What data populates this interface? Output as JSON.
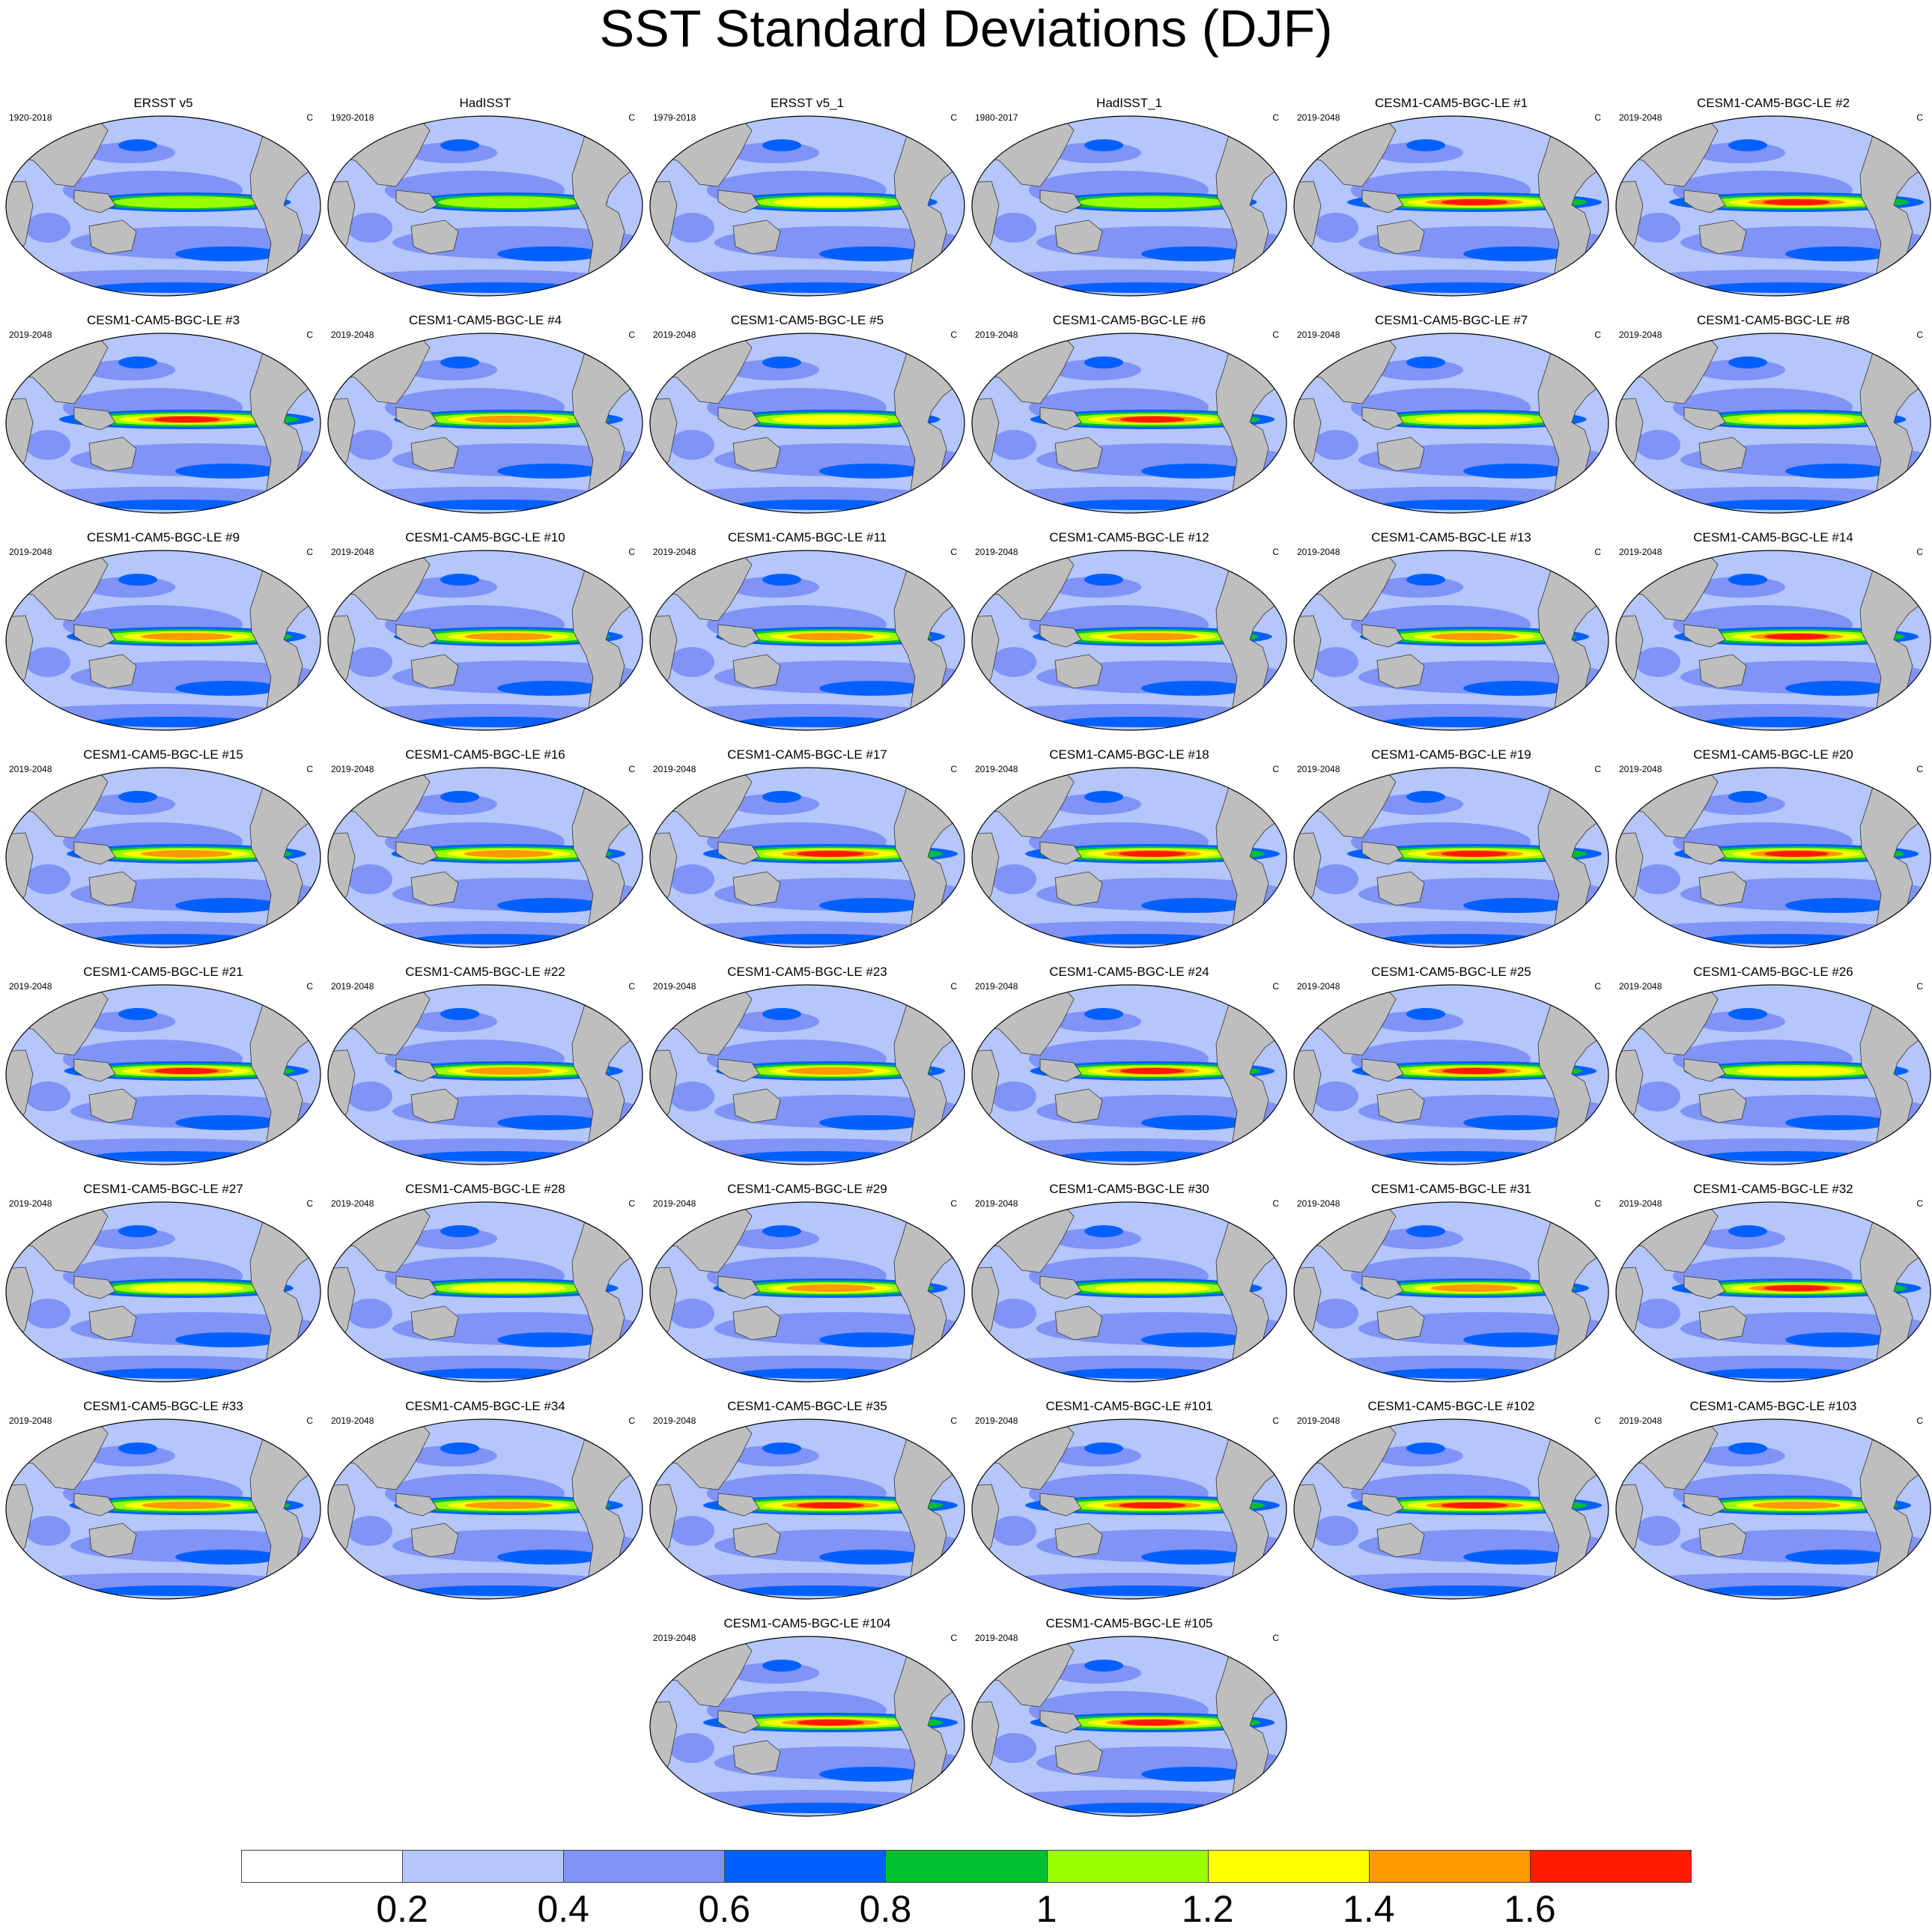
{
  "title": "SST Standard Deviations (DJF)",
  "unit": "C",
  "panels": [
    {
      "title": "ERSST v5",
      "period": "1920-2018",
      "intensity": 0.55
    },
    {
      "title": "HadISST",
      "period": "1920-2018",
      "intensity": 0.45
    },
    {
      "title": "ERSST v5_1",
      "period": "1979-2018",
      "intensity": 0.6
    },
    {
      "title": "HadISST_1",
      "period": "1980-2017",
      "intensity": 0.55
    },
    {
      "title": "CESM1-CAM5-BGC-LE #1",
      "period": "2019-2048",
      "intensity": 1.0
    },
    {
      "title": "CESM1-CAM5-BGC-LE #2",
      "period": "2019-2048",
      "intensity": 1.0
    },
    {
      "title": "CESM1-CAM5-BGC-LE #3",
      "period": "2019-2048",
      "intensity": 1.0
    },
    {
      "title": "CESM1-CAM5-BGC-LE #4",
      "period": "2019-2048",
      "intensity": 0.75
    },
    {
      "title": "CESM1-CAM5-BGC-LE #5",
      "period": "2019-2048",
      "intensity": 0.65
    },
    {
      "title": "CESM1-CAM5-BGC-LE #6",
      "period": "2019-2048",
      "intensity": 0.9
    },
    {
      "title": "CESM1-CAM5-BGC-LE #7",
      "period": "2019-2048",
      "intensity": 0.7
    },
    {
      "title": "CESM1-CAM5-BGC-LE #8",
      "period": "2019-2048",
      "intensity": 0.65
    },
    {
      "title": "CESM1-CAM5-BGC-LE #9",
      "period": "2019-2048",
      "intensity": 0.85
    },
    {
      "title": "CESM1-CAM5-BGC-LE #10",
      "period": "2019-2048",
      "intensity": 0.75
    },
    {
      "title": "CESM1-CAM5-BGC-LE #11",
      "period": "2019-2048",
      "intensity": 0.75
    },
    {
      "title": "CESM1-CAM5-BGC-LE #12",
      "period": "2019-2048",
      "intensity": 0.85
    },
    {
      "title": "CESM1-CAM5-BGC-LE #13",
      "period": "2019-2048",
      "intensity": 0.75
    },
    {
      "title": "CESM1-CAM5-BGC-LE #14",
      "period": "2019-2048",
      "intensity": 0.9
    },
    {
      "title": "CESM1-CAM5-BGC-LE #15",
      "period": "2019-2048",
      "intensity": 0.85
    },
    {
      "title": "CESM1-CAM5-BGC-LE #16",
      "period": "2019-2048",
      "intensity": 0.8
    },
    {
      "title": "CESM1-CAM5-BGC-LE #17",
      "period": "2019-2048",
      "intensity": 1.0
    },
    {
      "title": "CESM1-CAM5-BGC-LE #18",
      "period": "2019-2048",
      "intensity": 1.0
    },
    {
      "title": "CESM1-CAM5-BGC-LE #19",
      "period": "2019-2048",
      "intensity": 1.0
    },
    {
      "title": "CESM1-CAM5-BGC-LE #20",
      "period": "2019-2048",
      "intensity": 0.9
    },
    {
      "title": "CESM1-CAM5-BGC-LE #21",
      "period": "2019-2048",
      "intensity": 0.9
    },
    {
      "title": "CESM1-CAM5-BGC-LE #22",
      "period": "2019-2048",
      "intensity": 0.75
    },
    {
      "title": "CESM1-CAM5-BGC-LE #23",
      "period": "2019-2048",
      "intensity": 0.75
    },
    {
      "title": "CESM1-CAM5-BGC-LE #24",
      "period": "2019-2048",
      "intensity": 0.9
    },
    {
      "title": "CESM1-CAM5-BGC-LE #25",
      "period": "2019-2048",
      "intensity": 0.9
    },
    {
      "title": "CESM1-CAM5-BGC-LE #26",
      "period": "2019-2048",
      "intensity": 0.7
    },
    {
      "title": "CESM1-CAM5-BGC-LE #27",
      "period": "2019-2048",
      "intensity": 0.6
    },
    {
      "title": "CESM1-CAM5-BGC-LE #28",
      "period": "2019-2048",
      "intensity": 0.65
    },
    {
      "title": "CESM1-CAM5-BGC-LE #29",
      "period": "2019-2048",
      "intensity": 0.8
    },
    {
      "title": "CESM1-CAM5-BGC-LE #30",
      "period": "2019-2048",
      "intensity": 0.65
    },
    {
      "title": "CESM1-CAM5-BGC-LE #31",
      "period": "2019-2048",
      "intensity": 0.75
    },
    {
      "title": "CESM1-CAM5-BGC-LE #32",
      "period": "2019-2048",
      "intensity": 0.95
    },
    {
      "title": "CESM1-CAM5-BGC-LE #33",
      "period": "2019-2048",
      "intensity": 0.8
    },
    {
      "title": "CESM1-CAM5-BGC-LE #34",
      "period": "2019-2048",
      "intensity": 0.75
    },
    {
      "title": "CESM1-CAM5-BGC-LE #35",
      "period": "2019-2048",
      "intensity": 1.0
    },
    {
      "title": "CESM1-CAM5-BGC-LE #101",
      "period": "2019-2048",
      "intensity": 1.0
    },
    {
      "title": "CESM1-CAM5-BGC-LE #102",
      "period": "2019-2048",
      "intensity": 1.0
    },
    {
      "title": "CESM1-CAM5-BGC-LE #103",
      "period": "2019-2048",
      "intensity": 0.75
    },
    {
      "title": "CESM1-CAM5-BGC-LE #104",
      "period": "2019-2048",
      "intensity": 1.0
    },
    {
      "title": "CESM1-CAM5-BGC-LE #105",
      "period": "2019-2048",
      "intensity": 0.9
    }
  ],
  "colorbar": {
    "colors": [
      "#ffffff",
      "#b4c6fa",
      "#8093f6",
      "#0060ff",
      "#00c030",
      "#99ff00",
      "#ffff00",
      "#ff9900",
      "#ff1a00"
    ],
    "labels": [
      "0.2",
      "0.4",
      "0.6",
      "0.8",
      "1",
      "1.2",
      "1.4",
      "1.6"
    ]
  }
}
